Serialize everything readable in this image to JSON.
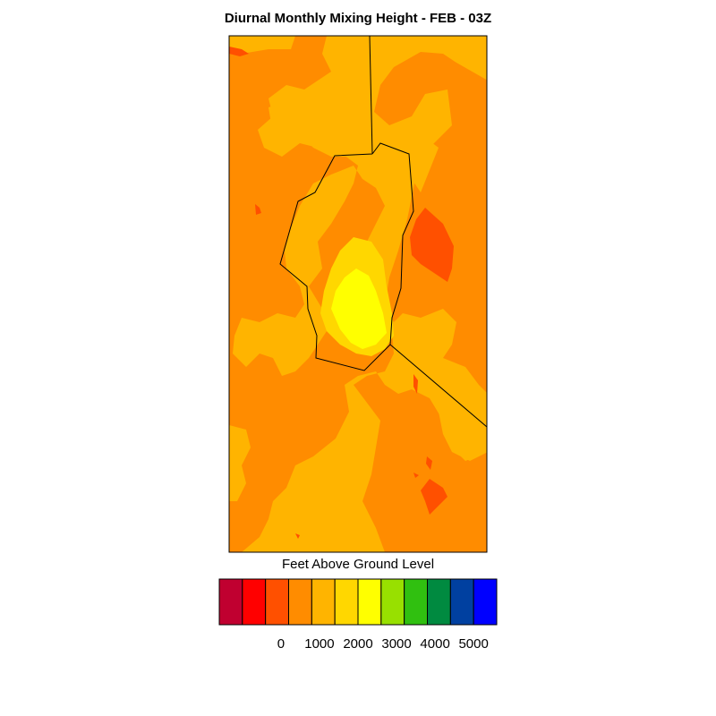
{
  "title": "Diurnal Monthly Mixing Height - FEB - 03Z",
  "colorbar": {
    "title": "Feet Above Ground Level",
    "colors": [
      "#c00030",
      "#ff0000",
      "#ff5000",
      "#ff8c00",
      "#ffb400",
      "#ffd700",
      "#ffff00",
      "#98e000",
      "#30c010",
      "#008a40",
      "#0040a0",
      "#0000ff"
    ],
    "labels": [
      {
        "text": "0",
        "value": 0
      },
      {
        "text": "1000",
        "value": 1000
      },
      {
        "text": "2000",
        "value": 2000
      },
      {
        "text": "3000",
        "value": 3000
      },
      {
        "text": "4000",
        "value": 4000
      },
      {
        "text": "5000",
        "value": 5000
      }
    ],
    "range": [
      -1000,
      5000
    ]
  },
  "map": {
    "fill_colors": {
      "base": "#ff8c00",
      "level_2000": "#ffb400",
      "level_2500": "#ffd700",
      "level_3000": "#ffff00",
      "level_1000": "#ff5000"
    },
    "boundary_color": "#000000"
  }
}
